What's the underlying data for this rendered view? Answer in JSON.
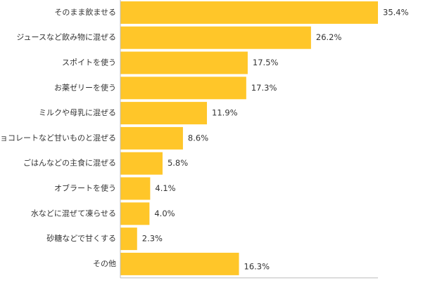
{
  "chart_data": {
    "type": "bar",
    "orientation": "horizontal",
    "categories": [
      "そのまま飲ませる",
      "ジュースなど飲み物に混ぜる",
      "スポイトを使う",
      "お薬ゼリーを使う",
      "ミルクや母乳に混ぜる",
      "チョコレートなど甘いものと混ぜる",
      "ごはんなどの主食に混ぜる",
      "オブラートを使う",
      "水などに混ぜて凍らせる",
      "砂糖などで甘くする",
      "その他"
    ],
    "values": [
      35.4,
      26.2,
      17.5,
      17.3,
      11.9,
      8.6,
      5.8,
      4.1,
      4.0,
      2.3,
      16.3
    ],
    "value_labels": [
      "35.4%",
      "26.2%",
      "17.5%",
      "17.3%",
      "11.9%",
      "8.6%",
      "5.8%",
      "4.1%",
      "4.0%",
      "2.3%",
      "16.3%"
    ],
    "unit": "%",
    "xlim": [
      0,
      35.4
    ],
    "grid": false,
    "legend": "none",
    "bar_color": "#ffc629",
    "axis_color": "#bbbbbb",
    "text_color": "#333333"
  }
}
